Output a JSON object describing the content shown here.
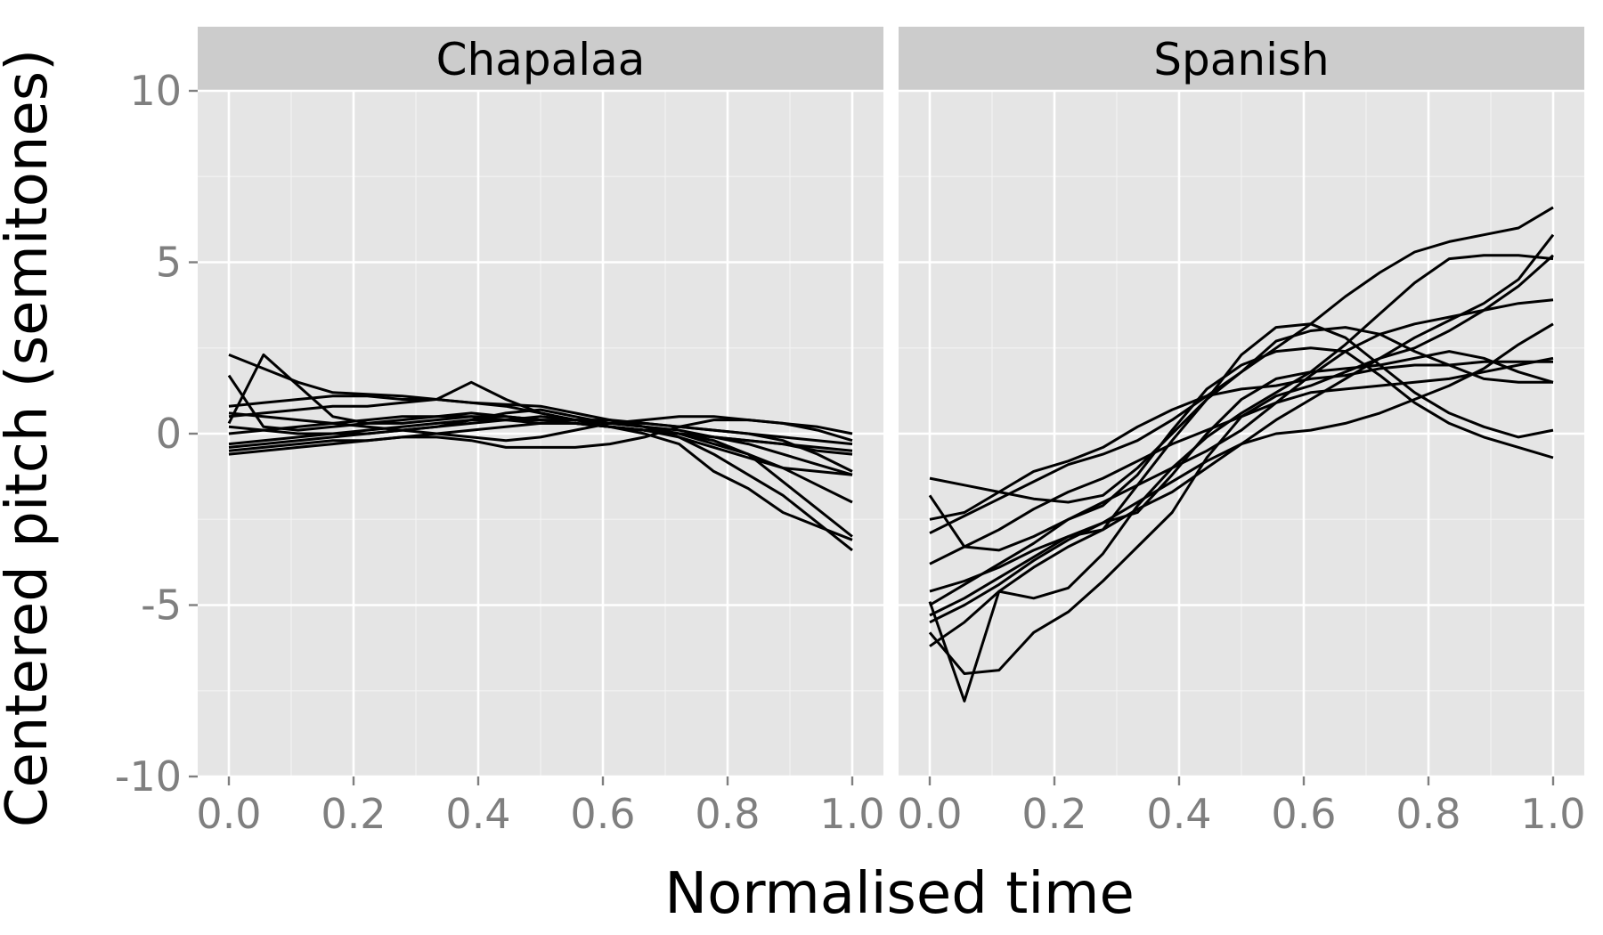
{
  "chart_data": {
    "type": "line",
    "xlabel": "Normalised time",
    "ylabel": "Centered pitch (semitones)",
    "xlim": [
      0,
      1
    ],
    "ylim": [
      -10,
      10
    ],
    "x_ticks": [
      "0.0",
      "0.2",
      "0.4",
      "0.6",
      "0.8",
      "1.0"
    ],
    "y_ticks": [
      "10",
      "5",
      "0",
      "-5",
      "-10"
    ],
    "grid": true,
    "line_color": "#000000",
    "panel_background": "#e5e5e5",
    "strip_background": "#cccccc",
    "x": [
      0,
      0.0556,
      0.1111,
      0.1667,
      0.2222,
      0.2778,
      0.3333,
      0.3889,
      0.4444,
      0.5,
      0.5556,
      0.6111,
      0.6667,
      0.7222,
      0.7778,
      0.8333,
      0.8889,
      0.9444,
      1
    ],
    "facets": [
      {
        "label": "Chapalaa",
        "series": [
          {
            "values": [
              2.3,
              1.9,
              1.5,
              1.2,
              1.15,
              1.1,
              1.0,
              0.9,
              0.85,
              0.8,
              0.6,
              0.4,
              0.2,
              -0.1,
              -0.4,
              -0.7,
              -1.0,
              -1.1,
              -1.2
            ]
          },
          {
            "values": [
              1.7,
              0.2,
              0.1,
              0.2,
              0.3,
              0.4,
              0.5,
              0.6,
              0.5,
              0.4,
              0.3,
              0.2,
              0.1,
              0.0,
              -0.1,
              -0.2,
              -0.3,
              -0.4,
              -0.5
            ]
          },
          {
            "values": [
              0.3,
              2.3,
              1.4,
              0.5,
              0.3,
              0.3,
              0.4,
              0.5,
              0.5,
              0.4,
              0.3,
              0.2,
              0.1,
              0.0,
              -0.1,
              -0.2,
              -0.3,
              -0.5,
              -0.6
            ]
          },
          {
            "values": [
              0.8,
              0.9,
              1.0,
              1.1,
              1.1,
              1.0,
              1.0,
              0.9,
              0.8,
              0.6,
              0.4,
              0.2,
              0.1,
              0.0,
              -0.2,
              -0.6,
              -1.4,
              -2.2,
              -3.0
            ]
          },
          {
            "values": [
              -0.6,
              -0.5,
              -0.4,
              -0.3,
              -0.2,
              -0.1,
              0.0,
              0.1,
              0.2,
              0.3,
              0.3,
              0.2,
              0.1,
              -0.1,
              -0.6,
              -1.2,
              -1.8,
              -2.6,
              -3.4
            ]
          },
          {
            "values": [
              0.5,
              0.6,
              0.7,
              0.8,
              0.8,
              0.9,
              1.0,
              1.5,
              1.0,
              0.6,
              0.4,
              0.3,
              0.2,
              0.0,
              -0.3,
              -0.6,
              -1.0,
              -1.5,
              -2.0
            ]
          },
          {
            "values": [
              0.0,
              0.1,
              0.2,
              0.3,
              0.4,
              0.5,
              0.5,
              0.5,
              0.4,
              0.3,
              0.3,
              0.2,
              0.0,
              -0.3,
              -1.1,
              -1.6,
              -2.3,
              -2.7,
              -3.1
            ]
          },
          {
            "values": [
              -0.3,
              -0.2,
              -0.1,
              0.0,
              0.1,
              0.2,
              0.3,
              0.4,
              0.4,
              0.5,
              0.4,
              0.4,
              0.3,
              0.2,
              0.1,
              0.0,
              -0.2,
              -0.6,
              -1.1
            ]
          },
          {
            "values": [
              0.2,
              0.1,
              0.0,
              0.0,
              0.0,
              0.1,
              0.2,
              0.4,
              0.6,
              0.7,
              0.5,
              0.3,
              0.2,
              0.1,
              -0.1,
              -0.3,
              -0.6,
              -0.9,
              -1.2
            ]
          },
          {
            "values": [
              -0.4,
              -0.3,
              -0.2,
              -0.1,
              0.0,
              0.1,
              0.2,
              0.3,
              0.4,
              0.4,
              0.4,
              0.3,
              0.3,
              0.2,
              0.1,
              0.0,
              -0.1,
              -0.2,
              -0.3
            ]
          },
          {
            "values": [
              -0.5,
              -0.4,
              -0.3,
              -0.2,
              -0.2,
              -0.1,
              -0.1,
              -0.2,
              -0.4,
              -0.4,
              -0.4,
              -0.3,
              -0.1,
              0.2,
              0.4,
              0.4,
              0.3,
              0.1,
              -0.2
            ]
          },
          {
            "values": [
              0.6,
              0.5,
              0.4,
              0.3,
              0.2,
              0.1,
              0.0,
              -0.1,
              -0.2,
              -0.1,
              0.1,
              0.3,
              0.4,
              0.5,
              0.5,
              0.4,
              0.3,
              0.2,
              0.0
            ]
          }
        ]
      },
      {
        "label": "Spanish",
        "series": [
          {
            "values": [
              -1.3,
              -1.5,
              -1.7,
              -1.9,
              -2.0,
              -1.8,
              -1.0,
              0.0,
              1.0,
              1.8,
              2.5,
              3.2,
              4.0,
              4.7,
              5.3,
              5.6,
              5.8,
              6.0,
              6.6
            ]
          },
          {
            "values": [
              -1.8,
              -3.3,
              -3.4,
              -3.0,
              -2.5,
              -2.0,
              -1.5,
              -1.0,
              -0.5,
              0.1,
              0.9,
              1.7,
              2.4,
              2.9,
              3.2,
              3.4,
              3.6,
              3.8,
              3.9
            ]
          },
          {
            "values": [
              -2.5,
              -2.3,
              -1.7,
              -1.1,
              -0.8,
              -0.4,
              0.2,
              0.7,
              1.1,
              1.3,
              1.4,
              1.6,
              1.7,
              1.9,
              2.0,
              2.0,
              2.1,
              2.1,
              2.1
            ]
          },
          {
            "values": [
              -2.9,
              -2.4,
              -1.9,
              -1.4,
              -0.9,
              -0.6,
              -0.2,
              0.4,
              1.1,
              1.8,
              2.7,
              3.0,
              3.1,
              2.9,
              2.4,
              2.0,
              1.6,
              1.5,
              1.5
            ]
          },
          {
            "values": [
              -3.8,
              -3.3,
              -2.8,
              -2.2,
              -1.7,
              -1.3,
              -0.8,
              -0.3,
              0.1,
              0.5,
              0.9,
              1.2,
              1.3,
              1.4,
              1.5,
              1.6,
              1.8,
              2.0,
              2.2
            ]
          },
          {
            "values": [
              -4.6,
              -4.3,
              -3.9,
              -3.4,
              -3.0,
              -2.8,
              -1.5,
              -0.2,
              1.0,
              2.3,
              3.1,
              3.2,
              2.8,
              2.0,
              1.2,
              0.6,
              0.2,
              -0.1,
              0.1
            ]
          },
          {
            "values": [
              -5.0,
              -4.4,
              -3.8,
              -3.2,
              -2.5,
              -2.1,
              -1.2,
              0.1,
              1.3,
              2.0,
              2.4,
              2.5,
              2.4,
              1.7,
              0.9,
              0.3,
              -0.1,
              -0.4,
              -0.7
            ]
          },
          {
            "values": [
              -5.3,
              -4.8,
              -4.2,
              -3.6,
              -3.0,
              -2.6,
              -2.3,
              -1.2,
              0.0,
              1.0,
              1.6,
              1.8,
              1.9,
              2.0,
              2.2,
              2.4,
              2.2,
              1.8,
              1.5
            ]
          },
          {
            "values": [
              -5.8,
              -7.0,
              -6.9,
              -5.8,
              -5.2,
              -4.3,
              -3.3,
              -2.3,
              -0.7,
              0.5,
              1.1,
              1.4,
              1.8,
              2.2,
              2.5,
              3.0,
              3.6,
              4.3,
              5.2
            ]
          },
          {
            "values": [
              -6.2,
              -5.5,
              -4.6,
              -3.9,
              -3.3,
              -2.8,
              -2.2,
              -1.7,
              -1.0,
              -0.3,
              0.4,
              1.0,
              1.6,
              2.2,
              2.8,
              3.3,
              3.8,
              4.5,
              5.8
            ]
          },
          {
            "values": [
              -4.9,
              -7.8,
              -4.6,
              -4.8,
              -4.5,
              -3.5,
              -2.1,
              -1.0,
              -0.1,
              0.6,
              1.2,
              1.8,
              2.6,
              3.5,
              4.4,
              5.1,
              5.2,
              5.2,
              5.1
            ]
          },
          {
            "values": [
              -5.5,
              -5.0,
              -4.4,
              -3.7,
              -3.1,
              -2.6,
              -2.0,
              -1.4,
              -0.8,
              -0.3,
              0.0,
              0.1,
              0.3,
              0.6,
              1.0,
              1.4,
              1.9,
              2.6,
              3.2
            ]
          }
        ]
      }
    ]
  }
}
